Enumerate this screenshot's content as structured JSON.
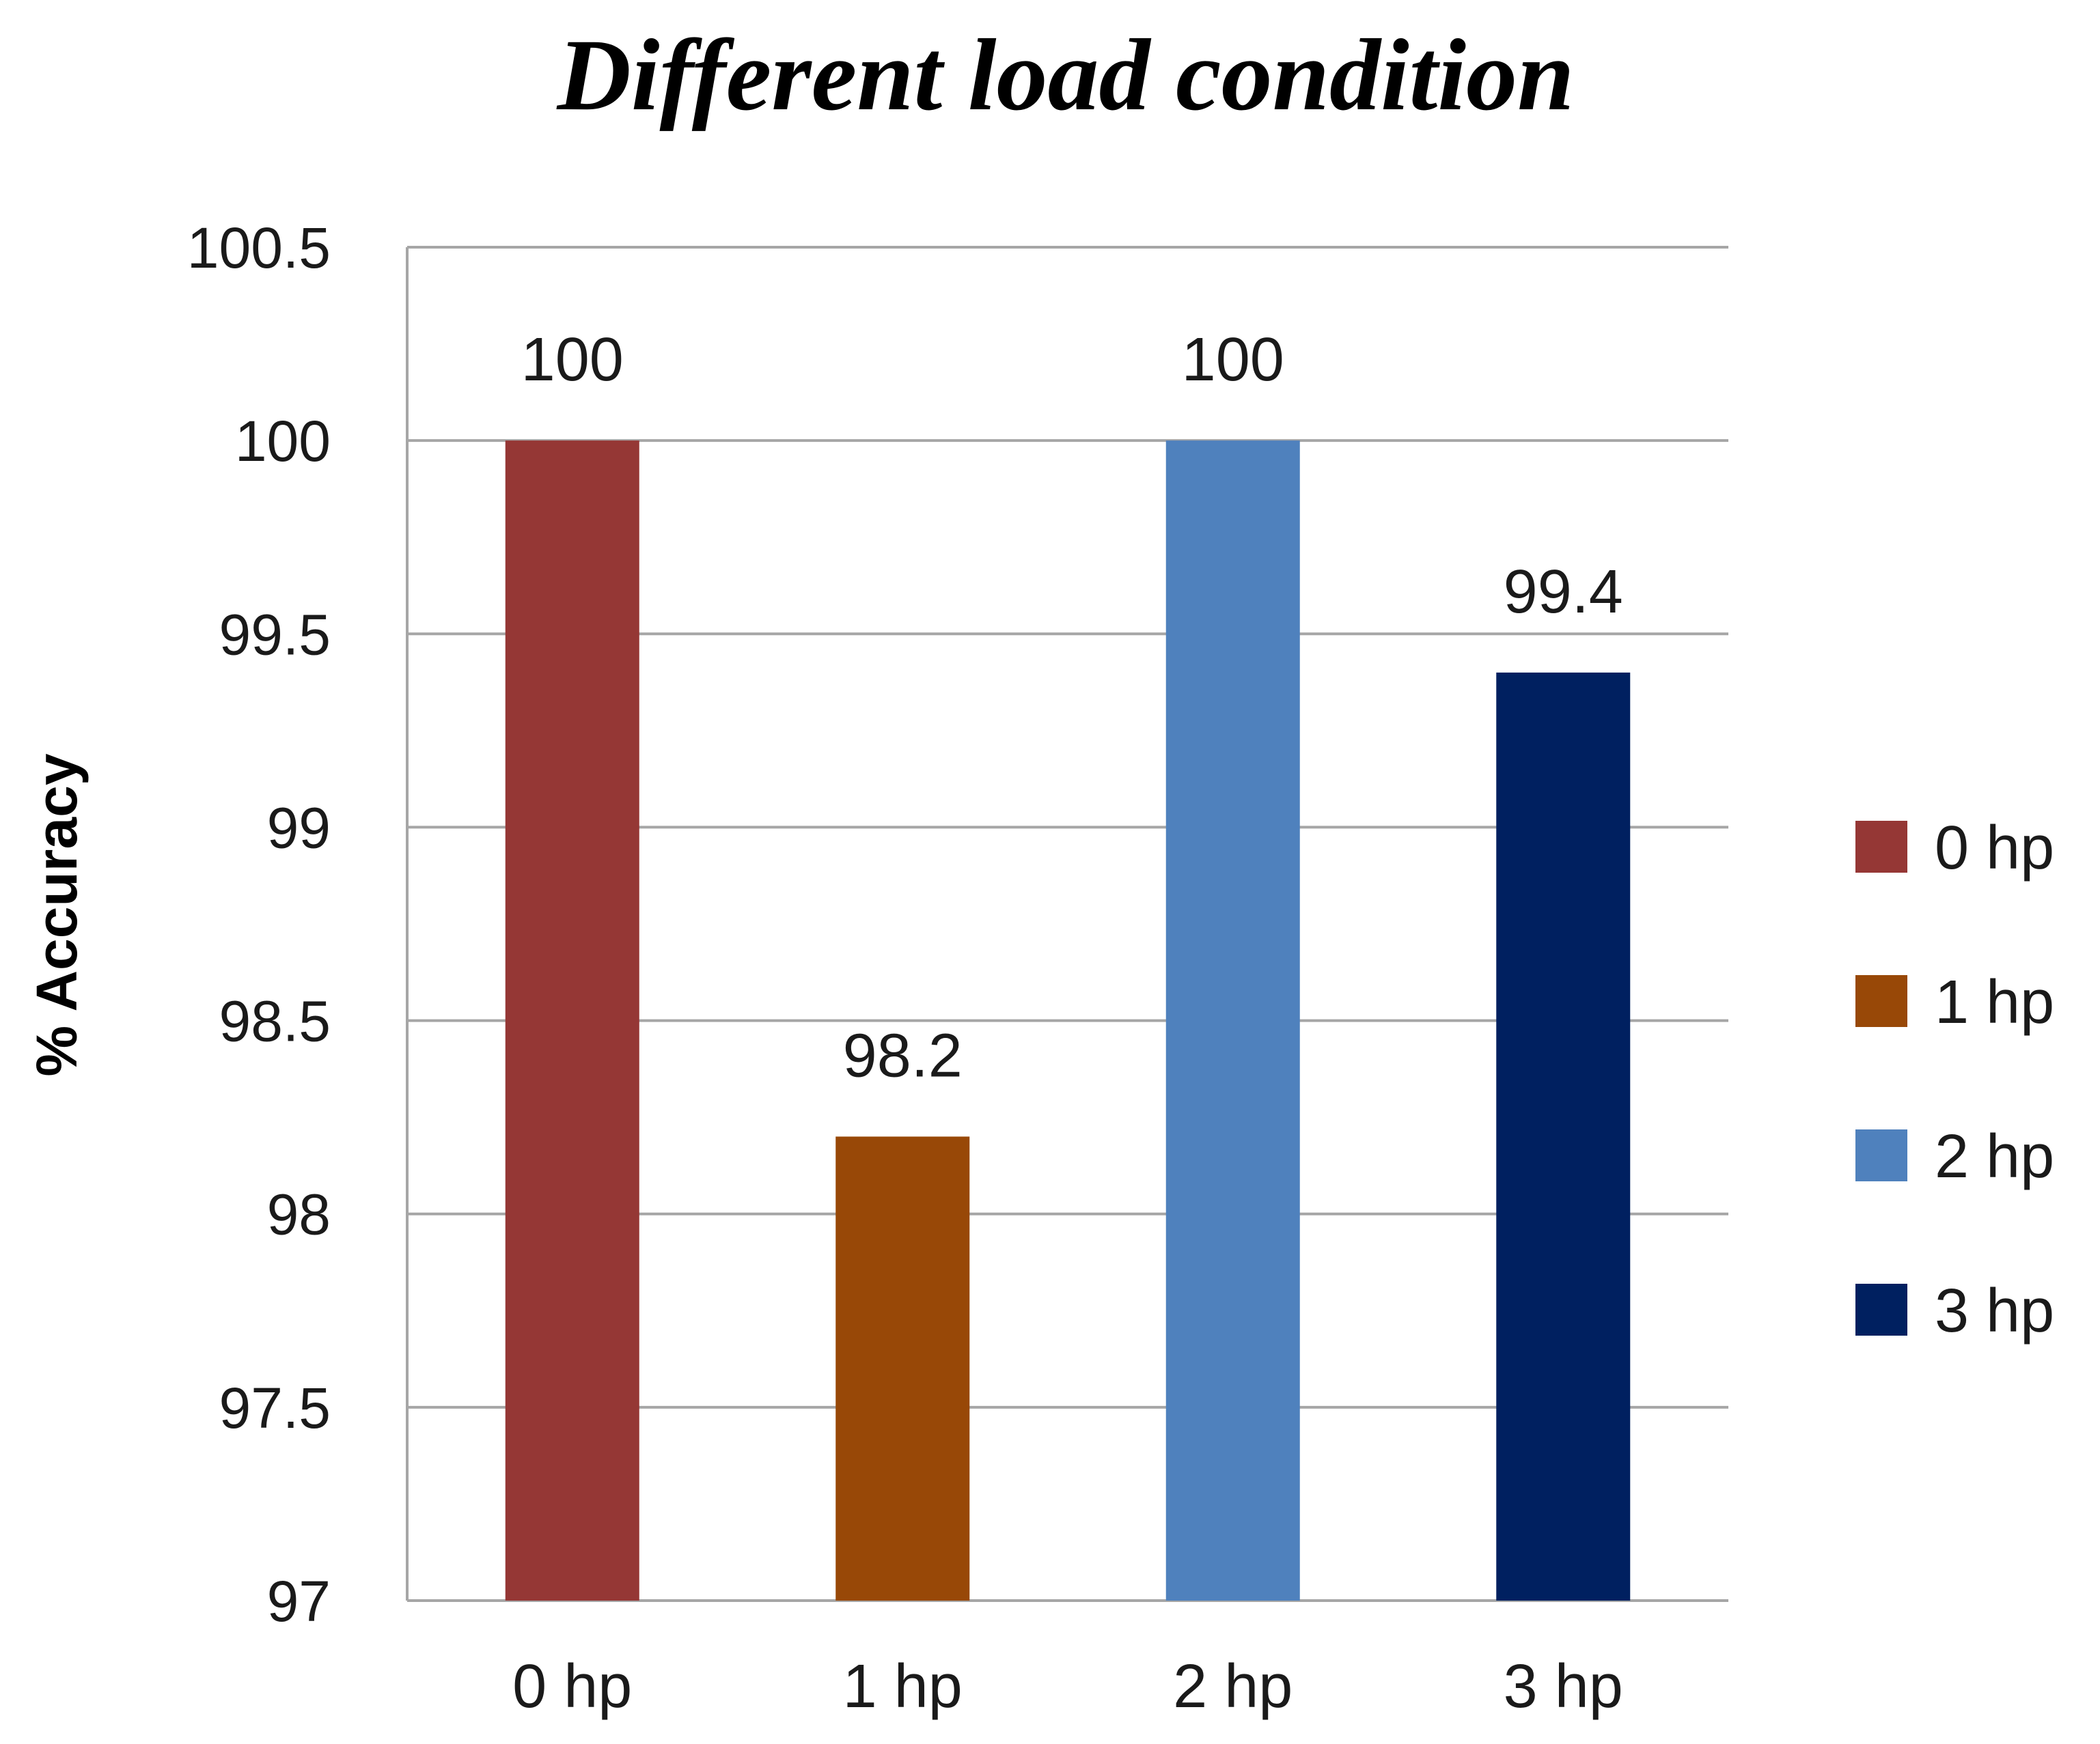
{
  "chart_data": {
    "type": "bar",
    "title": "Different load condition",
    "xlabel": "",
    "ylabel": "% Accuracy",
    "ylim": [
      97,
      100.5
    ],
    "yticks": [
      "97",
      "97.5",
      "98",
      "98.5",
      "99",
      "99.5",
      "100",
      "100.5"
    ],
    "categories": [
      "0 hp",
      "1 hp",
      "2 hp",
      "3 hp"
    ],
    "values": [
      100,
      98.2,
      100,
      99.4
    ],
    "data_labels": [
      "100",
      "98.2",
      "100",
      "99.4"
    ],
    "colors": [
      "#953735",
      "#984807",
      "#4f81bd",
      "#002060"
    ],
    "legend": [
      "0 hp",
      "1 hp",
      "2 hp",
      "3 hp"
    ],
    "legend_position": "right",
    "grid": true
  }
}
